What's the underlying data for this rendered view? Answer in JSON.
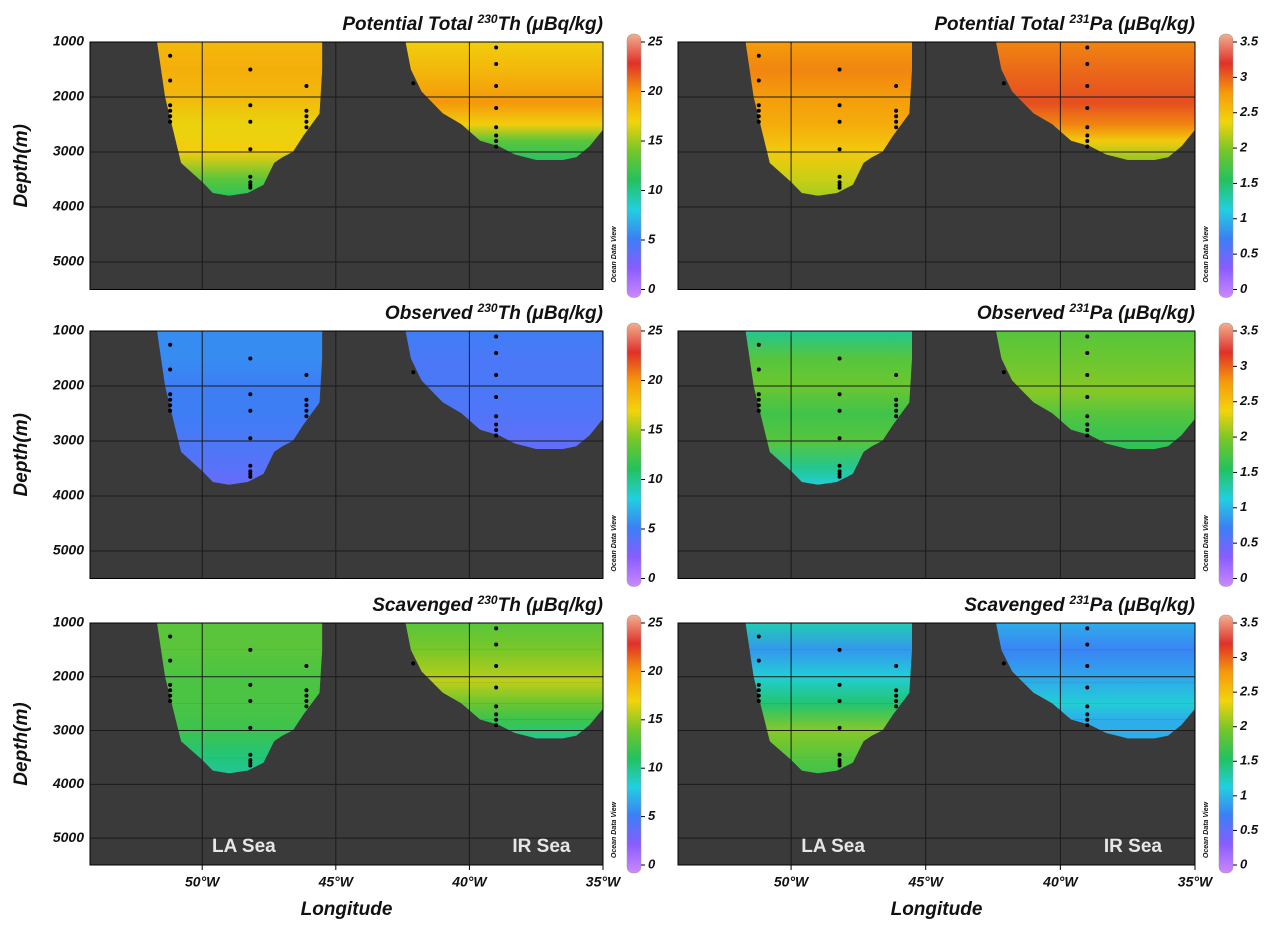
{
  "section": {
    "xlim": [
      -54.2,
      -35
    ],
    "ylim": [
      1000,
      5500
    ],
    "xticks": [
      {
        "value": -50,
        "label": "50°W"
      },
      {
        "value": -45,
        "label": "45°W"
      },
      {
        "value": -40,
        "label": "40°W"
      },
      {
        "value": -35,
        "label": "35°W"
      }
    ],
    "yticks": [
      1000,
      2000,
      3000,
      4000,
      5000
    ],
    "xlabel": "Longitude",
    "ylabel": "Depth(m)",
    "watermark": "Ocean Data View",
    "colormap": [
      "#cc88ff",
      "#8a5cff",
      "#3b7ff5",
      "#22cfe0",
      "#22c25e",
      "#74c62a",
      "#f2d40c",
      "#f59a0a",
      "#e0302a",
      "#f0b08f"
    ],
    "basins": [
      {
        "label": "LA Sea",
        "lon": [
          -51.7,
          -51.4,
          -51.0,
          -50.8,
          -50.0,
          -49.6,
          -49.0,
          -48.3,
          -47.7,
          -47.3,
          -47.0,
          -46.6,
          -46.2,
          -45.6,
          -45.5,
          -45.5
        ],
        "floor": [
          1000,
          2000,
          2800,
          3200,
          3550,
          3750,
          3800,
          3750,
          3600,
          3200,
          3100,
          3000,
          2700,
          2300,
          1500,
          1000
        ],
        "depth": [
          1000,
          1500,
          2000,
          2500,
          3000,
          3500,
          3800
        ]
      },
      {
        "label": "IR Sea",
        "lon": [
          -42.4,
          -42.2,
          -41.8,
          -41.0,
          -40.3,
          -39.6,
          -38.9,
          -38.3,
          -37.5,
          -36.5,
          -36.0,
          -35.5,
          -35.0,
          -35.0
        ],
        "floor": [
          1000,
          1500,
          1900,
          2300,
          2500,
          2800,
          2900,
          3050,
          3150,
          3150,
          3100,
          2900,
          2600,
          1000
        ],
        "depth": [
          1000,
          1500,
          2100,
          2500,
          2800,
          3200
        ]
      }
    ],
    "stations": [
      {
        "lon": -51.2,
        "depths": [
          1250,
          1700,
          2150,
          2250,
          2350,
          2450
        ]
      },
      {
        "lon": -48.2,
        "depths": [
          1500,
          2150,
          2450,
          2950,
          3450,
          3550,
          3600,
          3650
        ]
      },
      {
        "lon": -46.1,
        "depths": [
          1800,
          2250,
          2350,
          2450,
          2550
        ]
      },
      {
        "lon": -42.1,
        "depths": [
          1750
        ]
      },
      {
        "lon": -39.0,
        "depths": [
          1100,
          1400,
          1800,
          2200,
          2550,
          2700,
          2800,
          2900
        ]
      }
    ]
  },
  "chart_data": [
    {
      "type": "section",
      "title": {
        "text": "Potential Total",
        "sup": "230",
        "rest": "Th (μBq/kg)"
      },
      "clim": [
        0,
        25
      ],
      "cticks": [
        0,
        5,
        10,
        15,
        20,
        25
      ],
      "values": [
        [
          18,
          18.5,
          18,
          16.5,
          17,
          13,
          11.5
        ],
        [
          17,
          18,
          19.5,
          17,
          13,
          11
        ]
      ]
    },
    {
      "type": "section",
      "title": {
        "text": "Potential Total",
        "sup": "231",
        "rest": "Pa (μBq/kg)"
      },
      "clim": [
        0,
        3.5
      ],
      "cticks": [
        0,
        0.5,
        1,
        1.5,
        2,
        2.5,
        3,
        3.5
      ],
      "values": [
        [
          2.7,
          2.8,
          2.7,
          2.6,
          2.4,
          2.2,
          2.1
        ],
        [
          2.8,
          2.9,
          3.0,
          2.8,
          2.4,
          2.0
        ]
      ]
    },
    {
      "type": "section",
      "title": {
        "text": "Observed",
        "sup": "230",
        "rest": "Th (μBq/kg)"
      },
      "clim": [
        0,
        25
      ],
      "cticks": [
        0,
        5,
        10,
        15,
        20,
        25
      ],
      "values": [
        [
          6,
          6,
          5.5,
          5.5,
          5,
          4.5,
          4
        ],
        [
          5.5,
          5,
          5,
          4.8,
          4.5,
          4.2
        ]
      ]
    },
    {
      "type": "section",
      "title": {
        "text": "Observed",
        "sup": "231",
        "rest": "Pa (μBq/kg)"
      },
      "clim": [
        0,
        3.5
      ],
      "cticks": [
        0,
        0.5,
        1,
        1.5,
        2,
        2.5,
        3,
        3.5
      ],
      "values": [
        [
          1.4,
          1.8,
          1.9,
          1.7,
          1.8,
          1.4,
          1.2
        ],
        [
          1.8,
          1.9,
          2.0,
          1.8,
          1.7,
          1.6
        ]
      ]
    },
    {
      "type": "section",
      "title": {
        "text": "Scavenged",
        "sup": "230",
        "rest": "Th (μBq/kg)"
      },
      "clim": [
        0,
        25
      ],
      "cticks": [
        0,
        5,
        10,
        15,
        20,
        25
      ],
      "values": [
        [
          13,
          13,
          12.5,
          12.5,
          12,
          10.5,
          10
        ],
        [
          13,
          14,
          15.5,
          13.5,
          12,
          10
        ]
      ]
    },
    {
      "type": "section",
      "title": {
        "text": "Scavenged",
        "sup": "231",
        "rest": "Pa (μBq/kg)"
      },
      "clim": [
        0,
        3.5
      ],
      "cticks": [
        0,
        0.5,
        1,
        1.5,
        2,
        2.5,
        3,
        3.5
      ],
      "values": [
        [
          1.3,
          0.9,
          1.2,
          1.5,
          2.0,
          1.8,
          1.7
        ],
        [
          1.0,
          0.8,
          1.0,
          1.2,
          1.0,
          1.0
        ]
      ]
    }
  ]
}
